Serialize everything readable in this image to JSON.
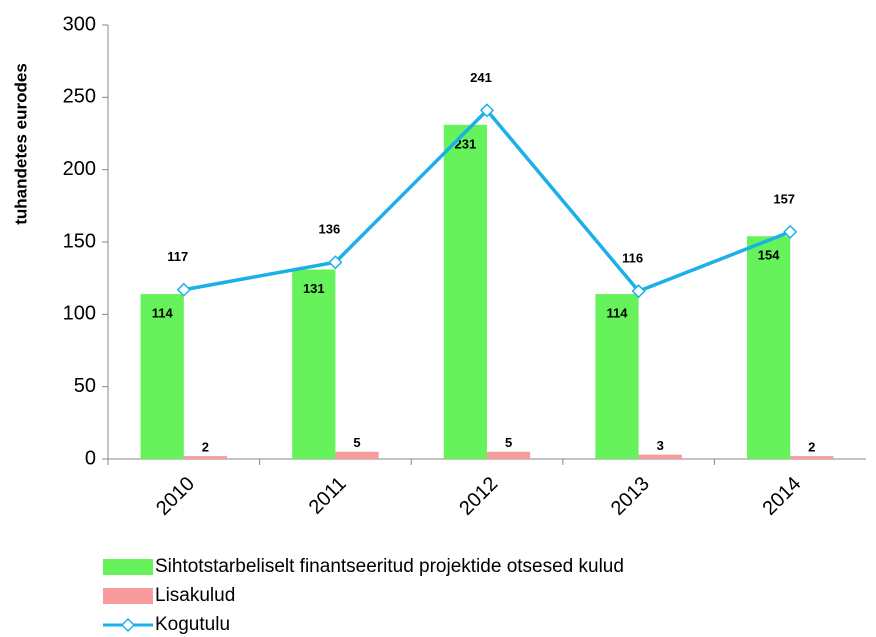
{
  "chart_data": {
    "type": "bar",
    "y_label": "tuhandetes eurodes",
    "categories": [
      "2010",
      "2011",
      "2012",
      "2013",
      "2014"
    ],
    "series": [
      {
        "name": "Sihtotstarbeliselt finantseeritud projektide otsesed kulud",
        "type": "bar",
        "color": "#66f25a",
        "values": [
          114,
          131,
          231,
          114,
          154
        ]
      },
      {
        "name": "Lisakulud",
        "type": "bar",
        "color": "#f79b9b",
        "values": [
          2,
          5,
          5,
          3,
          2
        ]
      },
      {
        "name": "Kogutulu",
        "type": "line",
        "color": "#1ab0e8",
        "values": [
          117,
          136,
          241,
          116,
          157
        ]
      }
    ],
    "ylim": [
      0,
      300
    ],
    "yticks": [
      0,
      50,
      100,
      150,
      200,
      250,
      300
    ],
    "grid": false
  }
}
